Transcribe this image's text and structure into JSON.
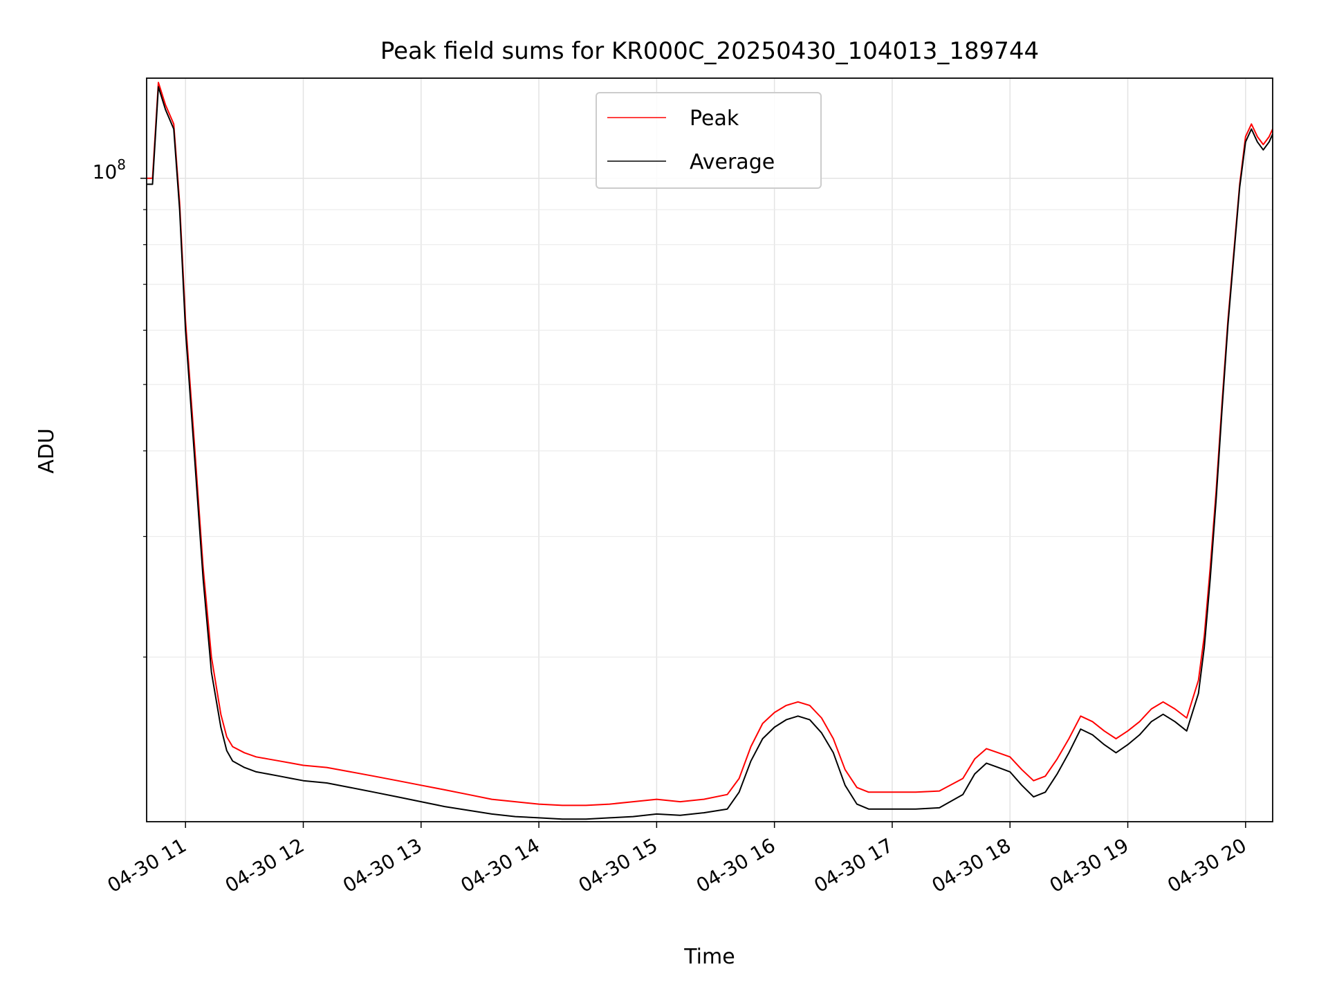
{
  "chart_data": {
    "type": "line",
    "title": "Peak field sums for KR000C_20250430_104013_189744",
    "xlabel": "Time",
    "ylabel": "ADU",
    "x_ticks": [
      "04-30 11",
      "04-30 12",
      "04-30 13",
      "04-30 14",
      "04-30 15",
      "04-30 16",
      "04-30 17",
      "04-30 18",
      "04-30 19",
      "04-30 20"
    ],
    "y_tick_label": {
      "base": "10",
      "exp": "8"
    },
    "x_unit": "hours (04-30)",
    "xlim": [
      10.67,
      20.23
    ],
    "yscale": "log",
    "ylim": [
      11500000,
      140000000
    ],
    "minor_y_ticks": [
      20000000,
      30000000,
      40000000,
      50000000,
      60000000,
      70000000,
      80000000,
      90000000
    ],
    "grid": true,
    "legend_position": "top-center",
    "series": [
      {
        "name": "Peak",
        "color": "#ff0000",
        "x": [
          10.67,
          10.72,
          10.77,
          10.83,
          10.9,
          10.95,
          11.0,
          11.08,
          11.15,
          11.22,
          11.3,
          11.35,
          11.4,
          11.5,
          11.6,
          11.7,
          11.8,
          11.9,
          12.0,
          12.2,
          12.4,
          12.6,
          12.8,
          13.0,
          13.2,
          13.4,
          13.6,
          13.8,
          14.0,
          14.2,
          14.4,
          14.6,
          14.8,
          15.0,
          15.2,
          15.4,
          15.6,
          15.7,
          15.8,
          15.9,
          16.0,
          16.1,
          16.2,
          16.3,
          16.4,
          16.5,
          16.6,
          16.7,
          16.8,
          16.9,
          17.0,
          17.2,
          17.4,
          17.6,
          17.7,
          17.8,
          17.9,
          18.0,
          18.1,
          18.2,
          18.3,
          18.4,
          18.5,
          18.6,
          18.7,
          18.8,
          18.9,
          19.0,
          19.1,
          19.2,
          19.3,
          19.4,
          19.5,
          19.6,
          19.65,
          19.7,
          19.75,
          19.8,
          19.85,
          19.9,
          19.95,
          20.0,
          20.05,
          20.1,
          20.15,
          20.2,
          20.23
        ],
        "y": [
          100000000,
          100000000,
          138000000,
          128000000,
          120000000,
          92000000,
          62000000,
          40000000,
          27000000,
          20000000,
          16500000,
          15300000,
          14800000,
          14500000,
          14300000,
          14200000,
          14100000,
          14000000,
          13900000,
          13800000,
          13600000,
          13400000,
          13200000,
          13000000,
          12800000,
          12600000,
          12400000,
          12300000,
          12200000,
          12150000,
          12150000,
          12200000,
          12300000,
          12400000,
          12300000,
          12400000,
          12600000,
          13300000,
          14800000,
          16000000,
          16600000,
          17000000,
          17200000,
          17000000,
          16300000,
          15200000,
          13700000,
          12900000,
          12700000,
          12700000,
          12700000,
          12700000,
          12750000,
          13300000,
          14200000,
          14700000,
          14500000,
          14300000,
          13700000,
          13200000,
          13400000,
          14200000,
          15200000,
          16400000,
          16100000,
          15600000,
          15200000,
          15600000,
          16100000,
          16800000,
          17200000,
          16800000,
          16300000,
          18500000,
          21500000,
          27000000,
          35000000,
          47000000,
          62000000,
          78000000,
          98000000,
          115000000,
          120000000,
          115000000,
          112000000,
          115000000,
          118000000
        ]
      },
      {
        "name": "Average",
        "color": "#000000",
        "x": [
          10.67,
          10.72,
          10.77,
          10.83,
          10.9,
          10.95,
          11.0,
          11.08,
          11.15,
          11.22,
          11.3,
          11.35,
          11.4,
          11.5,
          11.6,
          11.7,
          11.8,
          11.9,
          12.0,
          12.2,
          12.4,
          12.6,
          12.8,
          13.0,
          13.2,
          13.4,
          13.6,
          13.8,
          14.0,
          14.2,
          14.4,
          14.6,
          14.8,
          15.0,
          15.2,
          15.4,
          15.6,
          15.7,
          15.8,
          15.9,
          16.0,
          16.1,
          16.2,
          16.3,
          16.4,
          16.5,
          16.6,
          16.7,
          16.8,
          16.9,
          17.0,
          17.2,
          17.4,
          17.6,
          17.7,
          17.8,
          17.9,
          18.0,
          18.1,
          18.2,
          18.3,
          18.4,
          18.5,
          18.6,
          18.7,
          18.8,
          18.9,
          19.0,
          19.1,
          19.2,
          19.3,
          19.4,
          19.5,
          19.6,
          19.65,
          19.7,
          19.75,
          19.8,
          19.85,
          19.9,
          19.95,
          20.0,
          20.05,
          20.1,
          20.15,
          20.2,
          20.23
        ],
        "y": [
          98000000,
          98000000,
          136000000,
          126000000,
          118000000,
          90000000,
          60000000,
          38500000,
          26000000,
          19000000,
          15800000,
          14600000,
          14100000,
          13800000,
          13600000,
          13500000,
          13400000,
          13300000,
          13200000,
          13100000,
          12900000,
          12700000,
          12500000,
          12300000,
          12100000,
          11950000,
          11800000,
          11700000,
          11650000,
          11600000,
          11600000,
          11650000,
          11700000,
          11800000,
          11750000,
          11850000,
          12000000,
          12700000,
          14100000,
          15200000,
          15800000,
          16200000,
          16400000,
          16200000,
          15500000,
          14500000,
          13000000,
          12200000,
          12000000,
          12000000,
          12000000,
          12000000,
          12050000,
          12600000,
          13500000,
          14000000,
          13800000,
          13600000,
          13000000,
          12500000,
          12700000,
          13500000,
          14500000,
          15700000,
          15400000,
          14900000,
          14500000,
          14900000,
          15400000,
          16100000,
          16500000,
          16100000,
          15600000,
          17700000,
          20700000,
          26000000,
          34000000,
          46000000,
          61000000,
          77000000,
          97000000,
          113000000,
          118000000,
          113000000,
          110000000,
          113000000,
          116000000
        ]
      }
    ]
  }
}
